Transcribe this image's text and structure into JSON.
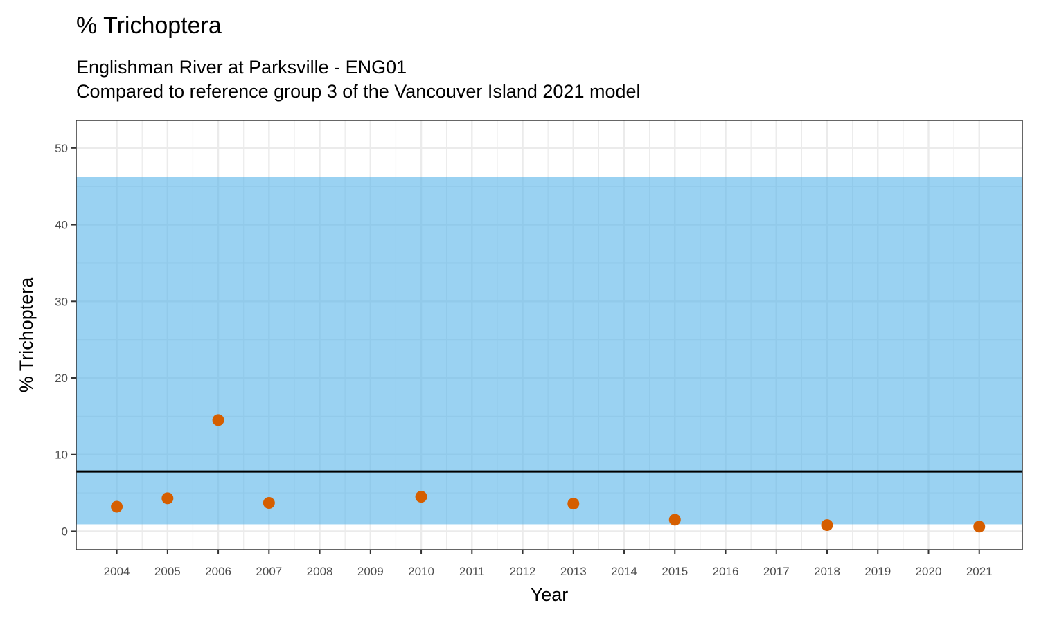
{
  "title": "% Trichoptera",
  "subtitle_line1": "Englishman River at Parksville - ENG01",
  "subtitle_line2": "Compared to reference group 3 of the Vancouver Island 2021 model",
  "chart_data": {
    "type": "scatter",
    "xlabel": "Year",
    "ylabel": "% Trichoptera",
    "xlim": [
      2003.2,
      2021.85
    ],
    "ylim": [
      -2.4,
      53.6
    ],
    "x_ticks": [
      2004,
      2005,
      2006,
      2007,
      2008,
      2009,
      2010,
      2011,
      2012,
      2013,
      2014,
      2015,
      2016,
      2017,
      2018,
      2019,
      2020,
      2021
    ],
    "y_ticks": [
      0,
      10,
      20,
      30,
      40,
      50
    ],
    "grid": true,
    "series": [
      {
        "x": [
          2004,
          2005,
          2006,
          2007,
          2010,
          2013,
          2015,
          2018,
          2021
        ],
        "y": [
          3.2,
          4.3,
          14.5,
          3.7,
          4.5,
          3.6,
          1.5,
          0.8,
          0.6
        ],
        "color": "#d55e00"
      }
    ],
    "reference_band": {
      "y_min": 0.9,
      "y_max": 46.2,
      "color": "#56b4e9"
    },
    "reference_line": {
      "y": 7.8,
      "color": "#000000"
    }
  }
}
